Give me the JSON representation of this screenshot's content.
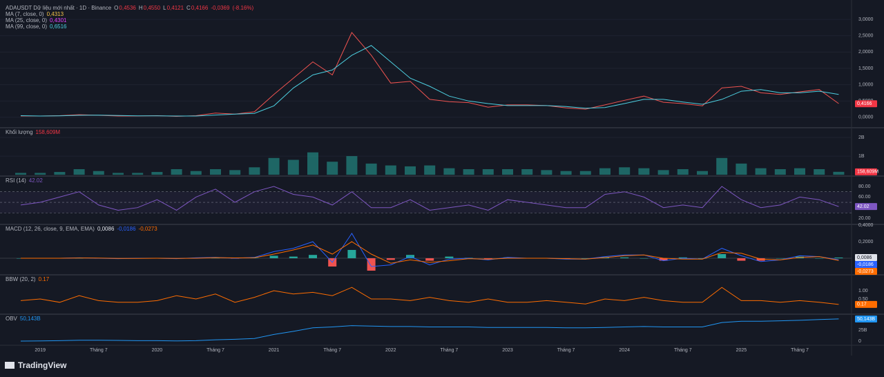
{
  "branding": "TradingView",
  "chart_data": [
    {
      "type": "line",
      "title": "ADAUSDT Dữ liệu mới nhất · 1D · Binance",
      "legend": [
        {
          "key": "O",
          "value": 0.4536,
          "label": "0,4536",
          "color": "#f23645"
        },
        {
          "key": "H",
          "value": 0.455,
          "label": "0,4550",
          "color": "#f23645"
        },
        {
          "key": "L",
          "value": 0.4121,
          "label": "0,4121",
          "color": "#f23645"
        },
        {
          "key": "C",
          "value": 0.4166,
          "label": "0,4166",
          "color": "#f23645"
        },
        {
          "value": -0.0369,
          "label": "-0,0369",
          "color": "#f23645"
        },
        {
          "value": -8.16,
          "label": "(-8.16%)",
          "color": "#f23645"
        }
      ],
      "ma_legend": [
        {
          "name": "MA (7, close, 0)",
          "value": 0.4313,
          "label": "0,4313",
          "color": "#f7c548"
        },
        {
          "name": "MA (25, close, 0)",
          "value": 0.4301,
          "label": "0,4301",
          "color": "#e040fb"
        },
        {
          "name": "MA (99, close, 0)",
          "value": 0.6516,
          "label": "0,6516",
          "color": "#4dd0e1"
        }
      ],
      "categories": [
        null,
        "2019",
        null,
        null,
        "Tháng 7",
        null,
        null,
        "2020",
        null,
        null,
        "Tháng 7",
        null,
        null,
        "2021",
        null,
        null,
        "Tháng 7",
        null,
        null,
        "2022",
        null,
        null,
        "Tháng 7",
        null,
        null,
        "2023",
        null,
        null,
        "Tháng 7",
        null,
        null,
        "2024",
        null,
        null,
        "Tháng 7",
        null,
        null,
        "2025",
        null,
        null,
        "Tháng 7",
        null,
        null
      ],
      "ylim": [
        -0.32,
        3.49
      ],
      "yticks": [
        {
          "value": 0,
          "label": "0,0000"
        },
        {
          "value": 0.5,
          "label": "0,5000"
        },
        {
          "value": 1,
          "label": "1,0000"
        },
        {
          "value": 1.5,
          "label": "1,5000"
        },
        {
          "value": 2,
          "label": "2,0000"
        },
        {
          "value": 2.5,
          "label": "2,5000"
        },
        {
          "value": 3,
          "label": "3,0000"
        }
      ],
      "grid": true,
      "series": [
        {
          "kind": "line",
          "color": "#ef5350",
          "values": [
            0.04,
            0.04,
            0.05,
            0.08,
            0.06,
            0.04,
            0.04,
            0.05,
            0.03,
            0.05,
            0.13,
            0.1,
            0.17,
            0.7,
            1.2,
            1.7,
            1.3,
            2.6,
            1.9,
            1.05,
            1.1,
            0.55,
            0.48,
            0.45,
            0.31,
            0.38,
            0.38,
            0.36,
            0.29,
            0.25,
            0.38,
            0.52,
            0.65,
            0.46,
            0.42,
            0.35,
            0.9,
            0.95,
            0.75,
            0.7,
            0.78,
            0.85,
            0.42
          ]
        },
        {
          "kind": "line",
          "color": "#4dd0e1",
          "values": [
            0.05,
            0.04,
            0.045,
            0.06,
            0.065,
            0.055,
            0.045,
            0.045,
            0.04,
            0.04,
            0.07,
            0.1,
            0.12,
            0.35,
            0.9,
            1.3,
            1.45,
            1.9,
            2.2,
            1.7,
            1.2,
            0.95,
            0.65,
            0.5,
            0.42,
            0.36,
            0.36,
            0.36,
            0.33,
            0.28,
            0.3,
            0.42,
            0.55,
            0.55,
            0.47,
            0.4,
            0.55,
            0.8,
            0.85,
            0.75,
            0.75,
            0.8,
            0.7
          ]
        }
      ],
      "tags": [
        {
          "value": 0.4166,
          "label": "0,4166",
          "color": "#f23645"
        }
      ]
    },
    {
      "type": "bar",
      "title": "Khối lượng",
      "legend": [
        {
          "value": 158609000,
          "label": "158,609M",
          "color": "#f23645"
        }
      ],
      "ylim": [
        -70000000,
        2520000000
      ],
      "yticks": [
        {
          "value": 1000000000,
          "label": "1B"
        },
        {
          "value": 2000000000,
          "label": "2B"
        }
      ],
      "grid": true,
      "series": [
        {
          "kind": "bar",
          "color": "#26a69a",
          "values": [
            100000000.0,
            100000000.0,
            150000000.0,
            300000000.0,
            200000000.0,
            100000000.0,
            100000000.0,
            150000000.0,
            300000000.0,
            200000000.0,
            300000000.0,
            250000000.0,
            400000000.0,
            900000000.0,
            800000000.0,
            1200000000.0,
            700000000.0,
            1000000000.0,
            600000000.0,
            500000000.0,
            450000000.0,
            500000000.0,
            350000000.0,
            300000000.0,
            300000000.0,
            300000000.0,
            300000000.0,
            250000000.0,
            200000000.0,
            200000000.0,
            350000000.0,
            400000000.0,
            350000000.0,
            250000000.0,
            300000000.0,
            200000000.0,
            900000000.0,
            600000000.0,
            350000000.0,
            300000000.0,
            350000000.0,
            300000000.0,
            158609000.0
          ]
        }
      ],
      "tags": [
        {
          "value": 158609000,
          "label": "158,609M",
          "color": "#f23645"
        }
      ]
    },
    {
      "type": "line",
      "title": "RSI (14)",
      "legend": [
        {
          "value": 42.02,
          "label": "42.02",
          "color": "#7e57c2"
        }
      ],
      "ylim": [
        8.3,
        99.6
      ],
      "yticks": [
        {
          "value": 20,
          "label": "20.00"
        },
        {
          "value": 40,
          "label": "40.00"
        },
        {
          "value": 60,
          "label": "60.00"
        },
        {
          "value": 80,
          "label": "80.00"
        }
      ],
      "bands": [
        30,
        50,
        70
      ],
      "series": [
        {
          "kind": "line",
          "color": "#7e57c2",
          "values": [
            45,
            50,
            60,
            70,
            45,
            35,
            40,
            55,
            35,
            60,
            75,
            50,
            70,
            80,
            65,
            60,
            45,
            70,
            40,
            40,
            55,
            35,
            40,
            45,
            35,
            55,
            50,
            45,
            40,
            40,
            65,
            70,
            60,
            40,
            45,
            40,
            80,
            55,
            40,
            45,
            60,
            55,
            42.02
          ]
        }
      ],
      "tags": [
        {
          "value": 42.02,
          "label": "42.02",
          "color": "#7e57c2"
        }
      ]
    },
    {
      "type": "line",
      "title": "MACD (12, 26, close, 9, EMA, EMA)",
      "legend": [
        {
          "value": 0.0086,
          "label": "0,0086",
          "color": "#e0e3eb"
        },
        {
          "value": -0.0186,
          "label": "-0,0186",
          "color": "#2962ff"
        },
        {
          "value": -0.0273,
          "label": "-0,0273",
          "color": "#ff6d00"
        }
      ],
      "ylim": [
        -0.2,
        0.408
      ],
      "yticks": [
        {
          "value": 0.2,
          "label": "0,2000"
        },
        {
          "value": 0.4,
          "label": "0,4000"
        }
      ],
      "series": [
        {
          "kind": "hist",
          "up_color": "#26a69a",
          "down_color": "#ef5350",
          "values": [
            0,
            0,
            0,
            0.002,
            -0.002,
            -0.003,
            0.002,
            0,
            -0.002,
            0.005,
            0.003,
            -0.004,
            0.004,
            0.03,
            0.02,
            0.04,
            -0.1,
            0.1,
            -0.15,
            -0.02,
            0.04,
            -0.03,
            0.02,
            0.005,
            -0.008,
            0.01,
            0,
            0,
            -0.005,
            0,
            0.012,
            0.01,
            0,
            -0.03,
            0.01,
            0,
            0.05,
            -0.03,
            -0.03,
            0,
            0.02,
            0,
            0.0086
          ]
        },
        {
          "kind": "line",
          "color": "#2962ff",
          "values": [
            0,
            0,
            0,
            0.005,
            0,
            -0.005,
            0,
            0,
            -0.005,
            0.005,
            0.01,
            0,
            0.01,
            0.08,
            0.12,
            0.2,
            -0.05,
            0.3,
            -0.1,
            -0.08,
            0.02,
            -0.08,
            -0.01,
            0,
            -0.02,
            0.01,
            0,
            0,
            -0.01,
            -0.01,
            0.02,
            0.04,
            0.04,
            -0.03,
            0,
            -0.01,
            0.12,
            0.03,
            -0.04,
            -0.02,
            0.03,
            0.02,
            -0.0186
          ]
        },
        {
          "kind": "line",
          "color": "#ff6d00",
          "values": [
            0,
            0,
            0,
            0.003,
            0.002,
            -0.002,
            -0.002,
            0,
            -0.003,
            0,
            0.007,
            0.004,
            0.006,
            0.05,
            0.1,
            0.16,
            0.05,
            0.2,
            0.05,
            -0.06,
            -0.02,
            -0.05,
            -0.03,
            -0.005,
            -0.012,
            0,
            0,
            0,
            -0.005,
            -0.01,
            0.008,
            0.03,
            0.04,
            0,
            -0.01,
            -0.01,
            0.07,
            0.06,
            -0.01,
            -0.02,
            0.01,
            0.02,
            -0.0273
          ]
        }
      ],
      "tags": [
        {
          "value": 0.0086,
          "label": "0,0086",
          "color": "#e0e3eb"
        },
        {
          "value": -0.0186,
          "label": "-0,0186",
          "color": "#2962ff"
        },
        {
          "value": -0.0273,
          "label": "-0,0273",
          "color": "#ff6d00"
        }
      ]
    },
    {
      "type": "line",
      "title": "BBW (20, 2)",
      "legend": [
        {
          "value": 0.17,
          "label": "0.17",
          "color": "#ff6d00"
        }
      ],
      "ylim": [
        -0.42,
        1.96
      ],
      "yticks": [
        {
          "value": 0.5,
          "label": "0.50"
        },
        {
          "value": 1,
          "label": "1.00"
        }
      ],
      "series": [
        {
          "kind": "line",
          "color": "#ff6d00",
          "values": [
            0.4,
            0.5,
            0.3,
            0.7,
            0.4,
            0.3,
            0.3,
            0.4,
            0.7,
            0.5,
            0.8,
            0.3,
            0.6,
            1.0,
            0.8,
            0.9,
            0.7,
            1.2,
            0.5,
            0.5,
            0.4,
            0.6,
            0.4,
            0.3,
            0.5,
            0.3,
            0.3,
            0.4,
            0.3,
            0.2,
            0.5,
            0.4,
            0.6,
            0.4,
            0.3,
            0.3,
            1.2,
            0.4,
            0.4,
            0.3,
            0.4,
            0.3,
            0.17
          ]
        }
      ],
      "tags": [
        {
          "value": 0.17,
          "label": "0.17",
          "color": "#ff6d00"
        }
      ]
    },
    {
      "type": "line",
      "title": "OBV",
      "legend": [
        {
          "value": 50143000000,
          "label": "50,143B",
          "color": "#2196f3"
        }
      ],
      "ylim": [
        -9400000000,
        61000000000
      ],
      "yticks": [
        0,
        {
          "value": 25000000000,
          "label": "25B"
        }
      ],
      "series": [
        {
          "kind": "line",
          "color": "#2196f3",
          "values": [
            0,
            500000000.0,
            1000000000.0,
            2000000000.0,
            2000000000.0,
            1500000000.0,
            1000000000.0,
            1000000000.0,
            500000000.0,
            1000000000.0,
            3000000000.0,
            4000000000.0,
            6000000000.0,
            15000000000.0,
            22000000000.0,
            30000000000.0,
            32000000000.0,
            35000000000.0,
            34000000000.0,
            33000000000.0,
            33000000000.0,
            32000000000.0,
            32000000000.0,
            32000000000.0,
            31000000000.0,
            31000000000.0,
            31000000000.0,
            31000000000.0,
            30000000000.0,
            30000000000.0,
            31000000000.0,
            32000000000.0,
            33000000000.0,
            32000000000.0,
            32000000000.0,
            32000000000.0,
            42000000000.0,
            45000000000.0,
            45000000000.0,
            46000000000.0,
            47000000000.0,
            49000000000.0,
            50143000000.0
          ]
        }
      ],
      "tags": [
        {
          "value": 50143000000,
          "label": "50,143B",
          "color": "#2196f3"
        }
      ]
    }
  ]
}
